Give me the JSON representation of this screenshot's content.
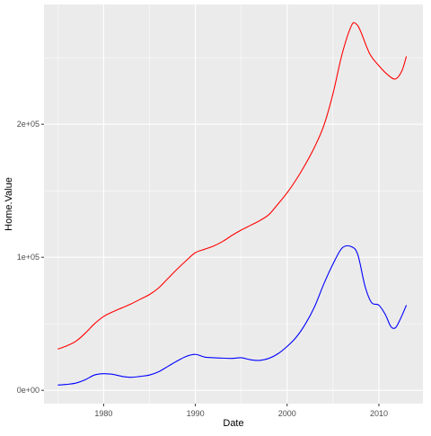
{
  "chart_data": {
    "type": "line",
    "title": "",
    "xlabel": "Date",
    "ylabel": "Home.Value",
    "xlim": [
      1973.5,
      2014.8
    ],
    "ylim": [
      -10000,
      290000
    ],
    "x_ticks": [
      1980,
      1990,
      2000,
      2010
    ],
    "x_tick_labels": [
      "1980",
      "1990",
      "2000",
      "2010"
    ],
    "y_ticks": [
      0,
      100000,
      200000
    ],
    "y_tick_labels": [
      "0e+00",
      "1e+05",
      "2e+05"
    ],
    "grid": true,
    "panel_background": "#ebebeb",
    "grid_color": "#ffffff",
    "series": [
      {
        "color": "#ff0000",
        "x": [
          1975.0,
          1976.0,
          1977.0,
          1978.0,
          1979.0,
          1980.0,
          1981.0,
          1982.0,
          1983.0,
          1984.0,
          1985.0,
          1986.0,
          1987.0,
          1988.0,
          1989.0,
          1990.0,
          1991.0,
          1992.0,
          1993.0,
          1994.0,
          1995.0,
          1996.0,
          1997.0,
          1998.0,
          1999.0,
          2000.0,
          2001.0,
          2002.0,
          2003.0,
          2004.0,
          2005.0,
          2006.0,
          2007.0,
          2007.5,
          2008.0,
          2009.0,
          2010.0,
          2011.0,
          2011.8,
          2012.5,
          2013.0
        ],
        "y": [
          31000,
          33500,
          37000,
          43000,
          50000,
          55500,
          59000,
          62000,
          65000,
          68500,
          72000,
          77000,
          84000,
          91000,
          97500,
          103500,
          106000,
          108500,
          112000,
          116500,
          120500,
          124000,
          127500,
          132000,
          140000,
          148500,
          158500,
          170000,
          183000,
          199000,
          223000,
          253000,
          274000,
          275500,
          270000,
          253000,
          244000,
          237000,
          234000,
          240000,
          251000
        ]
      },
      {
        "color": "#0000ff",
        "x": [
          1975.0,
          1976.0,
          1977.0,
          1978.0,
          1979.0,
          1980.0,
          1981.0,
          1982.0,
          1983.0,
          1984.0,
          1985.0,
          1986.0,
          1987.0,
          1988.0,
          1989.0,
          1990.0,
          1991.0,
          1992.0,
          1993.0,
          1994.0,
          1995.0,
          1996.0,
          1997.0,
          1998.0,
          1999.0,
          2000.0,
          2001.0,
          2002.0,
          2003.0,
          2004.0,
          2005.0,
          2006.0,
          2007.0,
          2007.7,
          2008.5,
          2009.2,
          2010.0,
          2010.7,
          2011.3,
          2011.8,
          2012.3,
          2013.0
        ],
        "y": [
          4000,
          4500,
          5500,
          8000,
          11500,
          12500,
          12000,
          10500,
          9800,
          10500,
          11500,
          14000,
          18000,
          22000,
          25500,
          27000,
          25000,
          24500,
          24200,
          24000,
          24500,
          23000,
          22500,
          24000,
          27500,
          33000,
          40000,
          50000,
          63000,
          80000,
          95000,
          107000,
          108000,
          102000,
          78000,
          66000,
          64000,
          57000,
          48000,
          47000,
          53000,
          64000
        ]
      }
    ]
  }
}
